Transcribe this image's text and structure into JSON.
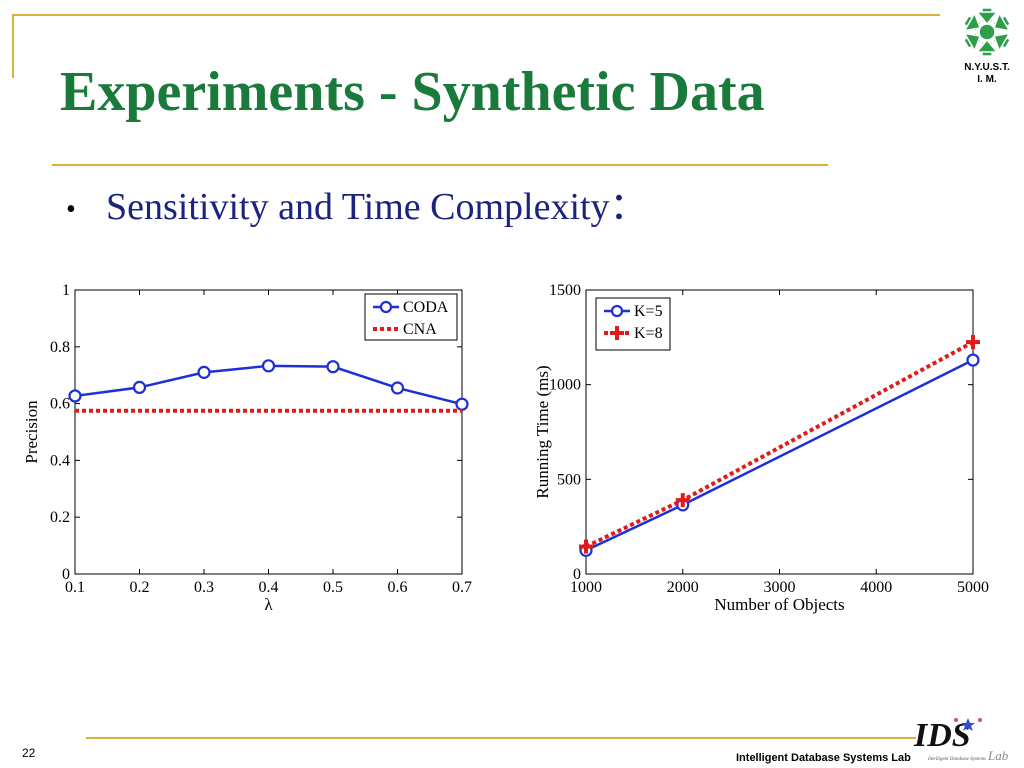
{
  "slide": {
    "title": "Experiments - Synthetic Data",
    "bullet": "Sensitivity and Time Complexity：",
    "page_number": "22",
    "footer_lab": "Intelligent Database Systems Lab",
    "logo_text_line1": "N.Y.U.S.T.",
    "logo_text_line2": "I. M.",
    "ids_logo_letters": "IDS",
    "ids_logo_sub": "Lab",
    "ids_logo_tagline": "Intelligent Database Systems",
    "colors": {
      "title": "#1a7a3c",
      "bullet": "#1a237e",
      "rule": "#d8b23a",
      "series_blue": "#1f2fd6",
      "series_red": "#e01b1b"
    }
  },
  "chart_data": [
    {
      "type": "line",
      "xlabel": "λ",
      "ylabel": "Precision",
      "xlim": [
        0.1,
        0.7
      ],
      "ylim": [
        0,
        1
      ],
      "x": [
        0.1,
        0.2,
        0.3,
        0.4,
        0.5,
        0.6,
        0.7
      ],
      "xticks": [
        "0.1",
        "0.2",
        "0.3",
        "0.4",
        "0.5",
        "0.6",
        "0.7"
      ],
      "yticks": [
        "0",
        "0.2",
        "0.4",
        "0.6",
        "0.8",
        "1"
      ],
      "legend_position": "top-right",
      "grid": false,
      "series": [
        {
          "name": "CODA",
          "values": [
            0.627,
            0.657,
            0.71,
            0.733,
            0.73,
            0.655,
            0.598
          ],
          "style": "solid-circle",
          "color": "#1f2fd6"
        },
        {
          "name": "CNA",
          "values": [
            0.575,
            0.575,
            0.575,
            0.575,
            0.575,
            0.575,
            0.575
          ],
          "style": "dotted",
          "color": "#e01b1b"
        }
      ]
    },
    {
      "type": "line",
      "xlabel": "Number of Objects",
      "ylabel": "Running Time (ms)",
      "xlim": [
        1000,
        5000
      ],
      "ylim": [
        0,
        1500
      ],
      "xticks": [
        "1000",
        "2000",
        "3000",
        "4000",
        "5000"
      ],
      "yticks": [
        "0",
        "500",
        "1000",
        "1500"
      ],
      "legend_position": "top-left",
      "grid": false,
      "series": [
        {
          "name": "K=5",
          "x": [
            1000,
            2000,
            5000
          ],
          "values": [
            125,
            365,
            1130
          ],
          "style": "solid-circle",
          "color": "#1f2fd6"
        },
        {
          "name": "K=8",
          "x": [
            1000,
            2000,
            5000
          ],
          "values": [
            145,
            390,
            1225
          ],
          "style": "dotted-cross",
          "color": "#e01b1b"
        }
      ]
    }
  ]
}
